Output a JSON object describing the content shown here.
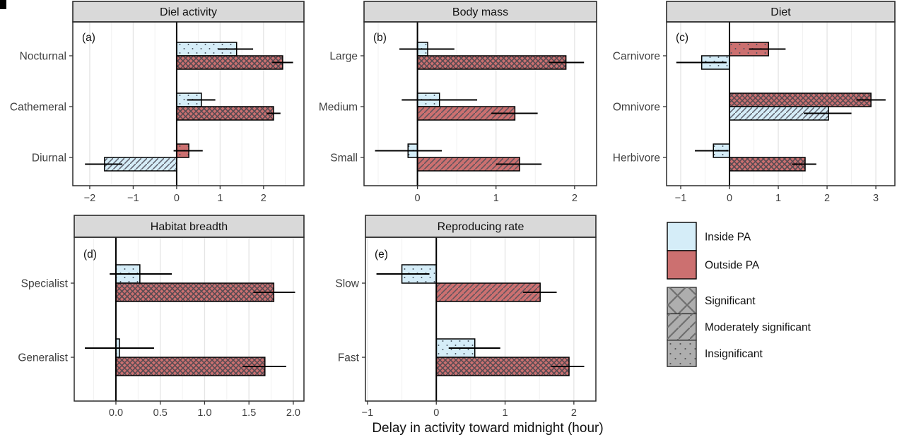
{
  "figure": {
    "x_axis_title": "Delay in activity toward midnight (hour)",
    "colors": {
      "inside_pa": "#d5edf8",
      "outside_pa": "#cc7070",
      "strip_fill": "#d9d9d9",
      "strip_border": "#2a2a2a",
      "panel_border": "#2a2a2a",
      "grid_major": "#e4e4e4",
      "grid_minor": "#f1f1f1",
      "axis_text": "#3f3f3f",
      "title_text": "#111111",
      "legend_gray": "#aeaeae",
      "hatch_dark": "#44444c",
      "bar_outline": "#000000",
      "error_bar": "#000000"
    }
  },
  "legend": {
    "fill_entries": [
      {
        "label": "Inside PA",
        "color": "#d5edf8"
      },
      {
        "label": "Outside PA",
        "color": "#cc7070"
      }
    ],
    "pattern_entries": [
      {
        "label": "Significant",
        "pattern": "cross"
      },
      {
        "label": "Moderately significant",
        "pattern": "diag"
      },
      {
        "label": "Insignificant",
        "pattern": "dots"
      }
    ]
  },
  "chart_data": [
    {
      "type": "bar",
      "orientation": "horizontal",
      "panel_letter": "(a)",
      "title": "Diel activity",
      "categories": [
        "Nocturnal",
        "Cathemeral",
        "Diurnal"
      ],
      "xlim": [
        -2.39,
        2.93
      ],
      "x_ticks": [
        -2,
        -1,
        0,
        1,
        2
      ],
      "x_tick_labels": [
        "−2",
        "−1",
        "0",
        "1",
        "2"
      ],
      "x_minor": [
        -1.5,
        -0.5,
        0.5,
        1.5,
        2.5
      ],
      "bars": [
        {
          "category": "Nocturnal",
          "series": "Inside PA",
          "significance": "Insignificant",
          "value": 1.38,
          "ci": [
            0.95,
            1.76
          ],
          "position": "top"
        },
        {
          "category": "Nocturnal",
          "series": "Outside PA",
          "significance": "Significant",
          "value": 2.44,
          "ci": [
            2.2,
            2.68
          ],
          "position": "bottom"
        },
        {
          "category": "Cathemeral",
          "series": "Inside PA",
          "significance": "Insignificant",
          "value": 0.57,
          "ci": [
            0.24,
            0.89
          ],
          "position": "top"
        },
        {
          "category": "Cathemeral",
          "series": "Outside PA",
          "significance": "Significant",
          "value": 2.23,
          "ci": [
            2.07,
            2.39
          ],
          "position": "bottom"
        },
        {
          "category": "Diurnal",
          "series": "Outside PA",
          "significance": "Insignificant",
          "value": 0.28,
          "ci": [
            -0.07,
            0.6
          ],
          "position": "top"
        },
        {
          "category": "Diurnal",
          "series": "Inside PA",
          "significance": "Moderately significant",
          "value": -1.66,
          "ci": [
            -2.11,
            -1.25
          ],
          "position": "bottom"
        }
      ]
    },
    {
      "type": "bar",
      "orientation": "horizontal",
      "panel_letter": "(b)",
      "title": "Body mass",
      "categories": [
        "Large",
        "Medium",
        "Small"
      ],
      "xlim": [
        -0.68,
        2.28
      ],
      "x_ticks": [
        0,
        1,
        2
      ],
      "x_tick_labels": [
        "0",
        "1",
        "2"
      ],
      "x_minor": [
        -0.5,
        0.5,
        1.5
      ],
      "bars": [
        {
          "category": "Large",
          "series": "Inside PA",
          "significance": "Insignificant",
          "value": 0.13,
          "ci": [
            -0.23,
            0.47
          ],
          "position": "top"
        },
        {
          "category": "Large",
          "series": "Outside PA",
          "significance": "Significant",
          "value": 1.89,
          "ci": [
            1.67,
            2.12
          ],
          "position": "bottom"
        },
        {
          "category": "Medium",
          "series": "Inside PA",
          "significance": "Insignificant",
          "value": 0.28,
          "ci": [
            -0.2,
            0.76
          ],
          "position": "top"
        },
        {
          "category": "Medium",
          "series": "Outside PA",
          "significance": "Moderately significant",
          "value": 1.24,
          "ci": [
            0.94,
            1.53
          ],
          "position": "bottom"
        },
        {
          "category": "Small",
          "series": "Inside PA",
          "significance": "Insignificant",
          "value": -0.12,
          "ci": [
            -0.54,
            0.31
          ],
          "position": "top"
        },
        {
          "category": "Small",
          "series": "Outside PA",
          "significance": "Moderately significant",
          "value": 1.3,
          "ci": [
            1.0,
            1.58
          ],
          "position": "bottom"
        }
      ]
    },
    {
      "type": "bar",
      "orientation": "horizontal",
      "panel_letter": "(c)",
      "title": "Diet",
      "categories": [
        "Carnivore",
        "Omnivore",
        "Herbivore"
      ],
      "xlim": [
        -1.29,
        3.39
      ],
      "x_ticks": [
        -1,
        0,
        1,
        2,
        3
      ],
      "x_tick_labels": [
        "−1",
        "0",
        "1",
        "2",
        "3"
      ],
      "x_minor": [
        -0.5,
        0.5,
        1.5,
        2.5
      ],
      "bars": [
        {
          "category": "Carnivore",
          "series": "Outside PA",
          "significance": "Insignificant",
          "value": 0.8,
          "ci": [
            0.4,
            1.15
          ],
          "position": "top"
        },
        {
          "category": "Carnivore",
          "series": "Inside PA",
          "significance": "Insignificant",
          "value": -0.57,
          "ci": [
            -1.09,
            -0.06
          ],
          "position": "bottom"
        },
        {
          "category": "Omnivore",
          "series": "Outside PA",
          "significance": "Significant",
          "value": 2.9,
          "ci": [
            2.6,
            3.2
          ],
          "position": "top"
        },
        {
          "category": "Omnivore",
          "series": "Inside PA",
          "significance": "Moderately significant",
          "value": 2.03,
          "ci": [
            1.52,
            2.5
          ],
          "position": "bottom"
        },
        {
          "category": "Herbivore",
          "series": "Inside PA",
          "significance": "Insignificant",
          "value": -0.33,
          "ci": [
            -0.71,
            -0.02
          ],
          "position": "top"
        },
        {
          "category": "Herbivore",
          "series": "Outside PA",
          "significance": "Significant",
          "value": 1.55,
          "ci": [
            1.28,
            1.78
          ],
          "position": "bottom"
        }
      ]
    },
    {
      "type": "bar",
      "orientation": "horizontal",
      "panel_letter": "(d)",
      "title": "Habitat breadth",
      "categories": [
        "Specialist",
        "Generalist"
      ],
      "xlim": [
        -0.47,
        2.12
      ],
      "x_ticks": [
        0,
        0.5,
        1,
        1.5,
        2
      ],
      "x_tick_labels": [
        "0.0",
        "0.5",
        "1.0",
        "1.5",
        "2.0"
      ],
      "x_minor": [
        -0.25,
        0.25,
        0.75,
        1.25,
        1.75
      ],
      "bars": [
        {
          "category": "Specialist",
          "series": "Inside PA",
          "significance": "Insignificant",
          "value": 0.27,
          "ci": [
            -0.07,
            0.63
          ],
          "position": "top"
        },
        {
          "category": "Specialist",
          "series": "Outside PA",
          "significance": "Significant",
          "value": 1.78,
          "ci": [
            1.55,
            2.02
          ],
          "position": "bottom"
        },
        {
          "category": "Generalist",
          "series": "Inside PA",
          "significance": "Insignificant",
          "value": 0.04,
          "ci": [
            -0.35,
            0.43
          ],
          "position": "top"
        },
        {
          "category": "Generalist",
          "series": "Outside PA",
          "significance": "Significant",
          "value": 1.68,
          "ci": [
            1.43,
            1.92
          ],
          "position": "bottom"
        }
      ]
    },
    {
      "type": "bar",
      "orientation": "horizontal",
      "panel_letter": "(e)",
      "title": "Reproducing rate",
      "categories": [
        "Slow",
        "Fast"
      ],
      "xlim": [
        -1.03,
        2.32
      ],
      "x_ticks": [
        -1,
        0,
        1,
        2
      ],
      "x_tick_labels": [
        "−1",
        "0",
        "1",
        "2"
      ],
      "x_minor": [
        -0.5,
        0.5,
        1.5
      ],
      "bars": [
        {
          "category": "Slow",
          "series": "Inside PA",
          "significance": "Insignificant",
          "value": -0.5,
          "ci": [
            -0.87,
            -0.1
          ],
          "position": "top"
        },
        {
          "category": "Slow",
          "series": "Outside PA",
          "significance": "Moderately significant",
          "value": 1.51,
          "ci": [
            1.26,
            1.75
          ],
          "position": "bottom"
        },
        {
          "category": "Fast",
          "series": "Inside PA",
          "significance": "Insignificant",
          "value": 0.56,
          "ci": [
            0.18,
            0.93
          ],
          "position": "top"
        },
        {
          "category": "Fast",
          "series": "Outside PA",
          "significance": "Significant",
          "value": 1.93,
          "ci": [
            1.67,
            2.15
          ],
          "position": "bottom"
        }
      ]
    }
  ]
}
